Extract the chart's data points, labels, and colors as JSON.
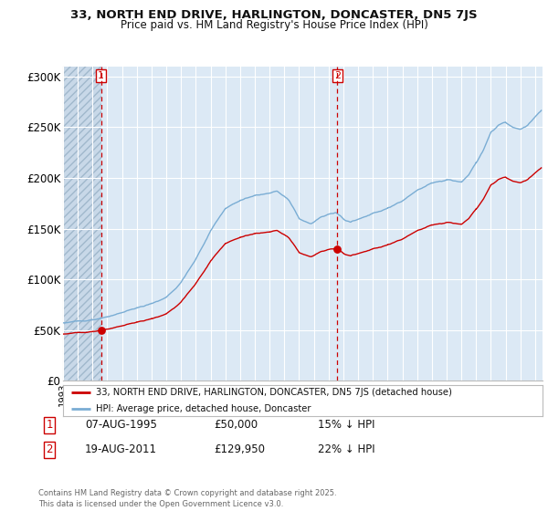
{
  "title_line1": "33, NORTH END DRIVE, HARLINGTON, DONCASTER, DN5 7JS",
  "title_line2": "Price paid vs. HM Land Registry's House Price Index (HPI)",
  "bg_color": "#dce9f5",
  "grid_color": "#ffffff",
  "red_line_color": "#cc0000",
  "blue_line_color": "#7aadd4",
  "transaction1_label": "07-AUG-1995",
  "transaction1_price_str": "£50,000",
  "transaction1_hpi": "15% ↓ HPI",
  "transaction2_label": "19-AUG-2011",
  "transaction2_price_str": "£129,950",
  "transaction2_hpi": "22% ↓ HPI",
  "legend_line1": "33, NORTH END DRIVE, HARLINGTON, DONCASTER, DN5 7JS (detached house)",
  "legend_line2": "HPI: Average price, detached house, Doncaster",
  "footer": "Contains HM Land Registry data © Crown copyright and database right 2025.\nThis data is licensed under the Open Government Licence v3.0.",
  "ylim_max": 310000,
  "yticks": [
    0,
    50000,
    100000,
    150000,
    200000,
    250000,
    300000
  ],
  "ytick_labels": [
    "£0",
    "£50K",
    "£100K",
    "£150K",
    "£200K",
    "£250K",
    "£300K"
  ]
}
